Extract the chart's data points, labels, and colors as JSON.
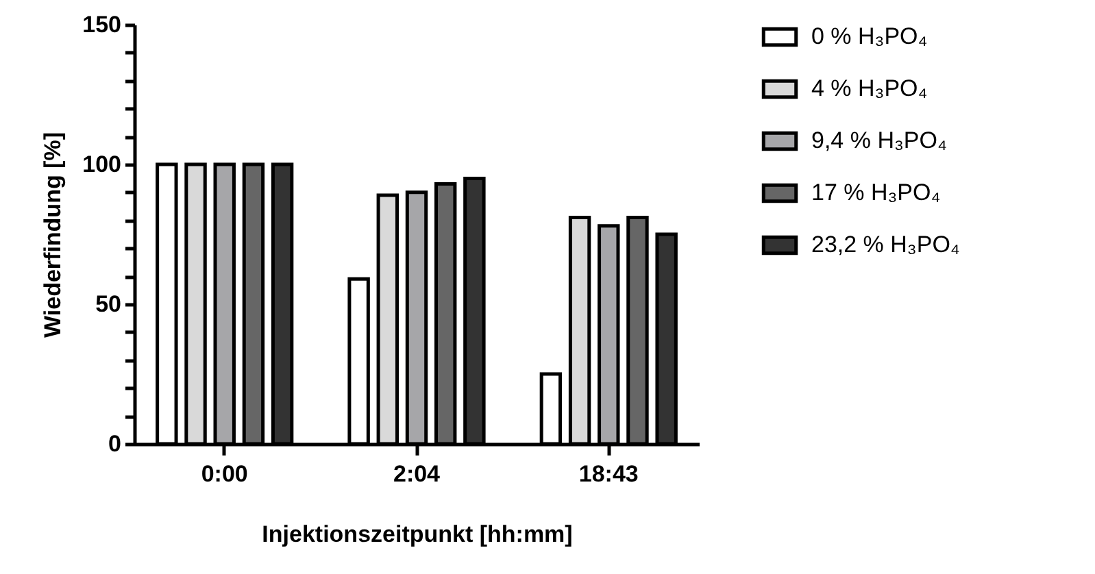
{
  "chart_data": {
    "type": "bar",
    "xlabel": "Injektionszeitpunkt [hh:mm]",
    "ylabel": "Wiederfindung [%]",
    "categories": [
      "0:00",
      "2:04",
      "18:43"
    ],
    "series": [
      {
        "name": "0 % H₃PO₄",
        "color": "#ffffff",
        "values": [
          100,
          59,
          25
        ]
      },
      {
        "name": "4 % H₃PO₄",
        "color": "#d9d9d9",
        "values": [
          100,
          89,
          81
        ]
      },
      {
        "name": "9,4 % H₃PO₄",
        "color": "#a6a6a9",
        "values": [
          100,
          90,
          78
        ]
      },
      {
        "name": "17 % H₃PO₄",
        "color": "#666666",
        "values": [
          100,
          93,
          81
        ]
      },
      {
        "name": "23,2 % H₃PO₄",
        "color": "#333333",
        "values": [
          100,
          95,
          75
        ]
      }
    ],
    "ylim": [
      0,
      150
    ],
    "yticks": [
      0,
      {
        "value": 10,
        "label": null
      },
      {
        "value": 20,
        "label": null
      },
      {
        "value": 30,
        "label": null
      },
      {
        "value": 40,
        "label": null
      },
      50,
      {
        "value": 60,
        "label": null
      },
      {
        "value": 70,
        "label": null
      },
      {
        "value": 80,
        "label": null
      },
      {
        "value": 90,
        "label": null
      },
      100,
      {
        "value": 110,
        "label": null
      },
      {
        "value": 120,
        "label": null
      },
      {
        "value": 130,
        "label": null
      },
      {
        "value": 140,
        "label": null
      },
      150
    ],
    "grid": false,
    "legend": "right"
  }
}
